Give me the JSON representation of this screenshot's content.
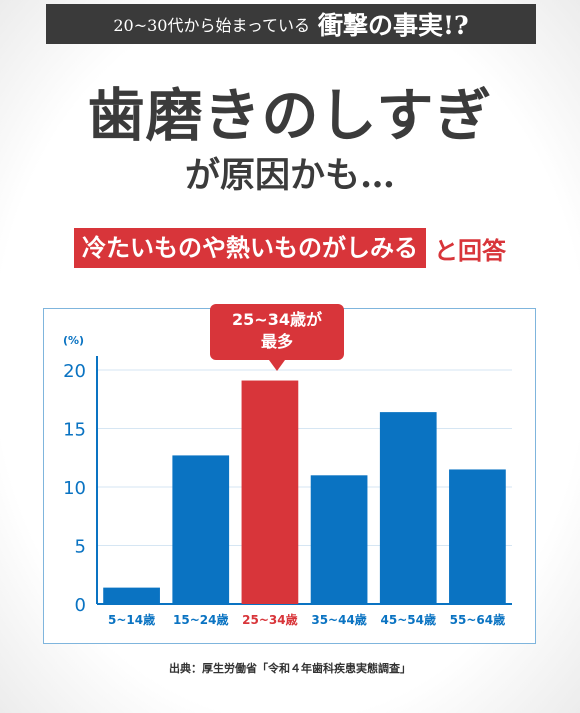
{
  "header": {
    "lead": "20~30代から始まっている",
    "highlight": "衝撃の事実!?"
  },
  "headline": "歯磨きのしすぎ",
  "subheadline": "が原因かも…",
  "answer": {
    "boxed": "冷たいものや熱いものがしみる",
    "suffix": "と回答"
  },
  "callout": {
    "line1": "25~34歳が",
    "line2": "最多"
  },
  "source": "出典：厚生労働省「令和４年歯科疾患実態調査」",
  "colors": {
    "accent": "#d8353a",
    "bar": "#0a73c2",
    "axis_text": "#0a73c2",
    "dark": "#3a3a3a"
  },
  "chart_data": {
    "type": "bar",
    "ylabel": "(%)",
    "ylim": [
      0,
      20
    ],
    "yticks": [
      0,
      5,
      10,
      15,
      20
    ],
    "grid": true,
    "categories": [
      "5~14歳",
      "15~24歳",
      "25~34歳",
      "35~44歳",
      "45~54歳",
      "55~64歳"
    ],
    "values": [
      1.4,
      12.7,
      19.1,
      11.0,
      16.4,
      11.5
    ],
    "highlight_index": 2
  }
}
